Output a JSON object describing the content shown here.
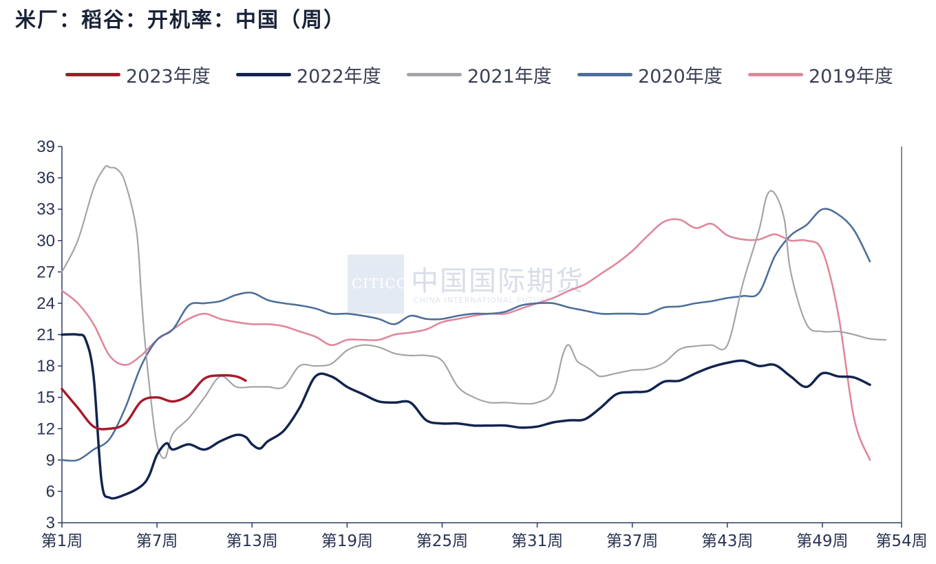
{
  "title": "米厂：稻谷：开机率：中国（周）",
  "watermark": {
    "logo_text": "CITICO",
    "name": "中国国际期货",
    "sub": "CHINA INTERNATIONAL FUTURES"
  },
  "chart_data": {
    "type": "line",
    "title": "米厂：稻谷：开机率：中国（周）",
    "xlabel": "",
    "ylabel": "",
    "ylim": [
      3,
      39
    ],
    "xlim": [
      1,
      54
    ],
    "y_ticks": [
      3,
      6,
      9,
      12,
      15,
      18,
      21,
      24,
      27,
      30,
      33,
      36,
      39
    ],
    "x_ticks": [
      1,
      7,
      13,
      19,
      25,
      31,
      37,
      43,
      49,
      54
    ],
    "x_tick_labels": [
      "第1周",
      "第7周",
      "第13周",
      "第19周",
      "第25周",
      "第31周",
      "第37周",
      "第43周",
      "第49周",
      "第54周"
    ],
    "legend_position": "top",
    "grid": false,
    "series": [
      {
        "name": "2023年度",
        "color": "#a51b2a",
        "width": 3.5,
        "x": [
          1,
          2,
          3,
          4,
          5,
          6,
          7,
          8,
          9,
          10,
          11,
          12,
          12.6
        ],
        "y": [
          15.8,
          14,
          12.2,
          12,
          12.5,
          14.6,
          15,
          14.6,
          15.2,
          16.8,
          17.1,
          17,
          16.6
        ]
      },
      {
        "name": "2022年度",
        "color": "#12244f",
        "width": 3.5,
        "x": [
          1,
          2,
          2.5,
          3,
          3.5,
          4,
          5,
          6,
          6.5,
          7,
          7.6,
          8,
          9,
          10,
          11,
          12,
          12.6,
          13,
          13.5,
          14,
          15,
          16,
          17,
          18,
          19,
          20,
          21,
          22,
          23,
          24,
          25,
          26,
          27,
          28,
          29,
          30,
          31,
          32,
          33,
          34,
          35,
          36,
          37,
          38,
          39,
          40,
          41,
          42,
          43,
          44,
          45,
          46,
          47,
          48,
          49,
          50,
          51,
          52
        ],
        "y": [
          21,
          21,
          20.5,
          17,
          7,
          5.4,
          5.7,
          6.5,
          7.5,
          9.5,
          10.6,
          10,
          10.5,
          10,
          10.8,
          11.4,
          11.2,
          10.5,
          10.1,
          10.8,
          11.8,
          14,
          17,
          17,
          16,
          15.3,
          14.6,
          14.5,
          14.5,
          12.8,
          12.5,
          12.5,
          12.3,
          12.3,
          12.3,
          12.1,
          12.2,
          12.6,
          12.8,
          12.9,
          14,
          15.3,
          15.5,
          15.6,
          16.5,
          16.6,
          17.3,
          17.9,
          18.3,
          18.5,
          18,
          18.1,
          17,
          16,
          17.3,
          17,
          16.9,
          16.2
        ]
      },
      {
        "name": "2021年度",
        "color": "#a4a4a8",
        "width": 2.2,
        "x": [
          1,
          2,
          3,
          3.7,
          4,
          4.5,
          5,
          5.7,
          6,
          6.2,
          6.6,
          7,
          7.5,
          8,
          9,
          10,
          11,
          12,
          13,
          14,
          15,
          16,
          17,
          18,
          19,
          20,
          21,
          22,
          23,
          24,
          25,
          26,
          27,
          28,
          29,
          30,
          31,
          32,
          32.6,
          33,
          33.5,
          34,
          34.5,
          35,
          36,
          37,
          38,
          39,
          40,
          41,
          42,
          43,
          44,
          45,
          45.5,
          46,
          46.6,
          47,
          48,
          49,
          50,
          51,
          52,
          53
        ],
        "y": [
          27,
          30,
          35,
          37,
          37,
          36.8,
          35.5,
          31,
          25,
          21,
          15,
          10.5,
          9.2,
          11.5,
          13,
          15,
          17,
          16,
          16,
          16,
          16,
          18,
          18,
          18.2,
          19.5,
          20,
          19.8,
          19.2,
          19,
          19,
          18.5,
          16,
          15,
          14.5,
          14.5,
          14.4,
          14.5,
          15.5,
          19,
          20,
          18.5,
          18,
          17.5,
          17,
          17.3,
          17.6,
          17.7,
          18.3,
          19.6,
          19.9,
          20,
          20,
          26,
          31,
          34.3,
          34.5,
          32,
          27,
          22,
          21.3,
          21.3,
          21,
          20.6,
          20.5
        ]
      },
      {
        "name": "2020年度",
        "color": "#4d6e9b",
        "width": 2.6,
        "x": [
          1,
          2,
          3,
          4,
          5,
          6,
          7,
          8,
          9,
          10,
          11,
          12,
          13,
          14,
          15,
          16,
          17,
          18,
          19,
          20,
          21,
          22,
          23,
          24,
          25,
          26,
          27,
          28,
          29,
          30,
          31,
          32,
          33,
          34,
          35,
          36,
          37,
          38,
          39,
          40,
          41,
          42,
          43,
          44,
          45,
          46,
          47,
          48,
          49,
          50,
          51,
          52
        ],
        "y": [
          9,
          9,
          10,
          11,
          14,
          18,
          20.5,
          21.5,
          23.8,
          24,
          24.2,
          24.8,
          25,
          24.3,
          24,
          23.8,
          23.5,
          23,
          23,
          22.8,
          22.5,
          22,
          22.8,
          22.5,
          22.5,
          22.8,
          23,
          23,
          23.2,
          23.8,
          24,
          24,
          23.6,
          23.3,
          23,
          23,
          23,
          23,
          23.6,
          23.7,
          24,
          24.2,
          24.5,
          24.7,
          25,
          28.5,
          30.5,
          31.5,
          33,
          32.5,
          31,
          28
        ]
      },
      {
        "name": "2019年度",
        "color": "#e1869a",
        "width": 2.6,
        "x": [
          1,
          2,
          3,
          4,
          5,
          6,
          7,
          8,
          9,
          10,
          11,
          12,
          13,
          14,
          15,
          16,
          17,
          18,
          19,
          20,
          21,
          22,
          23,
          24,
          25,
          26,
          27,
          28,
          29,
          30,
          31,
          32,
          33,
          34,
          35,
          36,
          37,
          38,
          39,
          40,
          41,
          42,
          43,
          44,
          45,
          46,
          47,
          48,
          49,
          50,
          51,
          52
        ],
        "y": [
          25.2,
          24,
          22,
          19,
          18.1,
          19,
          20.5,
          21.5,
          22.5,
          23,
          22.5,
          22.2,
          22,
          22,
          21.8,
          21.3,
          20.8,
          20,
          20.5,
          20.5,
          20.5,
          21,
          21.2,
          21.5,
          22.2,
          22.5,
          22.8,
          23,
          23,
          23.5,
          24,
          24.5,
          25.2,
          25.8,
          26.8,
          27.8,
          29,
          30.5,
          31.8,
          32,
          31.2,
          31.6,
          30.5,
          30.1,
          30.1,
          30.6,
          30,
          30,
          29,
          23,
          13,
          9
        ]
      }
    ]
  }
}
